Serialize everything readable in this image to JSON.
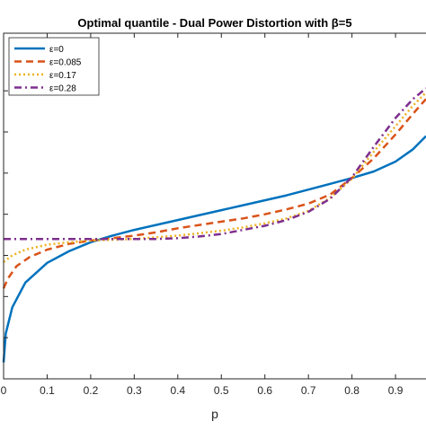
{
  "chart_data": {
    "type": "line",
    "title": "Optimal quantile - Dual Power Distortion with β=5",
    "xlabel": "p",
    "ylabel": "",
    "xlim": [
      0,
      0.97
    ],
    "ylim": [
      -1.0,
      3.2
    ],
    "xticks": [
      "0",
      "0.1",
      "0.2",
      "0.3",
      "0.4",
      "0.5",
      "0.6",
      "0.7",
      "0.8",
      "0.9"
    ],
    "xtick_values": [
      0,
      0.1,
      0.2,
      0.3,
      0.4,
      0.5,
      0.6,
      0.7,
      0.8,
      0.9
    ],
    "ytick_values": [
      -0.5,
      0,
      0.5,
      1.0,
      1.5,
      2.0,
      2.5
    ],
    "grid": false,
    "legend_position": "top-left",
    "series": [
      {
        "name": "ε=0",
        "color": "#0072BD",
        "dash": "solid",
        "x": [
          0.0,
          0.005,
          0.02,
          0.05,
          0.1,
          0.15,
          0.2,
          0.25,
          0.3,
          0.35,
          0.4,
          0.45,
          0.5,
          0.55,
          0.6,
          0.65,
          0.7,
          0.75,
          0.8,
          0.85,
          0.9,
          0.94,
          0.97
        ],
        "y": [
          -0.8,
          -0.45,
          -0.13,
          0.17,
          0.41,
          0.55,
          0.66,
          0.74,
          0.81,
          0.87,
          0.93,
          0.99,
          1.05,
          1.11,
          1.17,
          1.23,
          1.3,
          1.37,
          1.44,
          1.52,
          1.64,
          1.79,
          1.95
        ]
      },
      {
        "name": "ε=0.085",
        "color": "#D95319",
        "dash": "dashed",
        "x": [
          0.0,
          0.01,
          0.03,
          0.06,
          0.1,
          0.15,
          0.2,
          0.25,
          0.3,
          0.35,
          0.4,
          0.45,
          0.5,
          0.55,
          0.6,
          0.65,
          0.7,
          0.75,
          0.8,
          0.85,
          0.9,
          0.94,
          0.97
        ],
        "y": [
          0.1,
          0.22,
          0.37,
          0.48,
          0.57,
          0.64,
          0.68,
          0.71,
          0.74,
          0.78,
          0.83,
          0.87,
          0.91,
          0.95,
          1.0,
          1.06,
          1.13,
          1.24,
          1.44,
          1.68,
          1.97,
          2.22,
          2.4
        ]
      },
      {
        "name": "ε=0.17",
        "color": "#EDB120",
        "dash": "dotted",
        "x": [
          0.0,
          0.02,
          0.05,
          0.1,
          0.15,
          0.2,
          0.25,
          0.3,
          0.35,
          0.4,
          0.45,
          0.5,
          0.55,
          0.6,
          0.65,
          0.7,
          0.75,
          0.8,
          0.85,
          0.9,
          0.94,
          0.97
        ],
        "y": [
          0.42,
          0.5,
          0.57,
          0.63,
          0.66,
          0.68,
          0.69,
          0.7,
          0.72,
          0.74,
          0.77,
          0.8,
          0.84,
          0.89,
          0.95,
          1.04,
          1.2,
          1.43,
          1.76,
          2.07,
          2.32,
          2.48
        ]
      },
      {
        "name": "ε=0.28",
        "color": "#7E2F8E",
        "dash": "dashdot",
        "x": [
          0.0,
          0.1,
          0.2,
          0.25,
          0.3,
          0.35,
          0.4,
          0.45,
          0.5,
          0.55,
          0.6,
          0.65,
          0.7,
          0.75,
          0.8,
          0.85,
          0.9,
          0.94,
          0.97
        ],
        "y": [
          0.7,
          0.7,
          0.7,
          0.7,
          0.7,
          0.7,
          0.71,
          0.73,
          0.76,
          0.81,
          0.86,
          0.93,
          1.03,
          1.19,
          1.45,
          1.82,
          2.17,
          2.4,
          2.53
        ]
      }
    ]
  }
}
